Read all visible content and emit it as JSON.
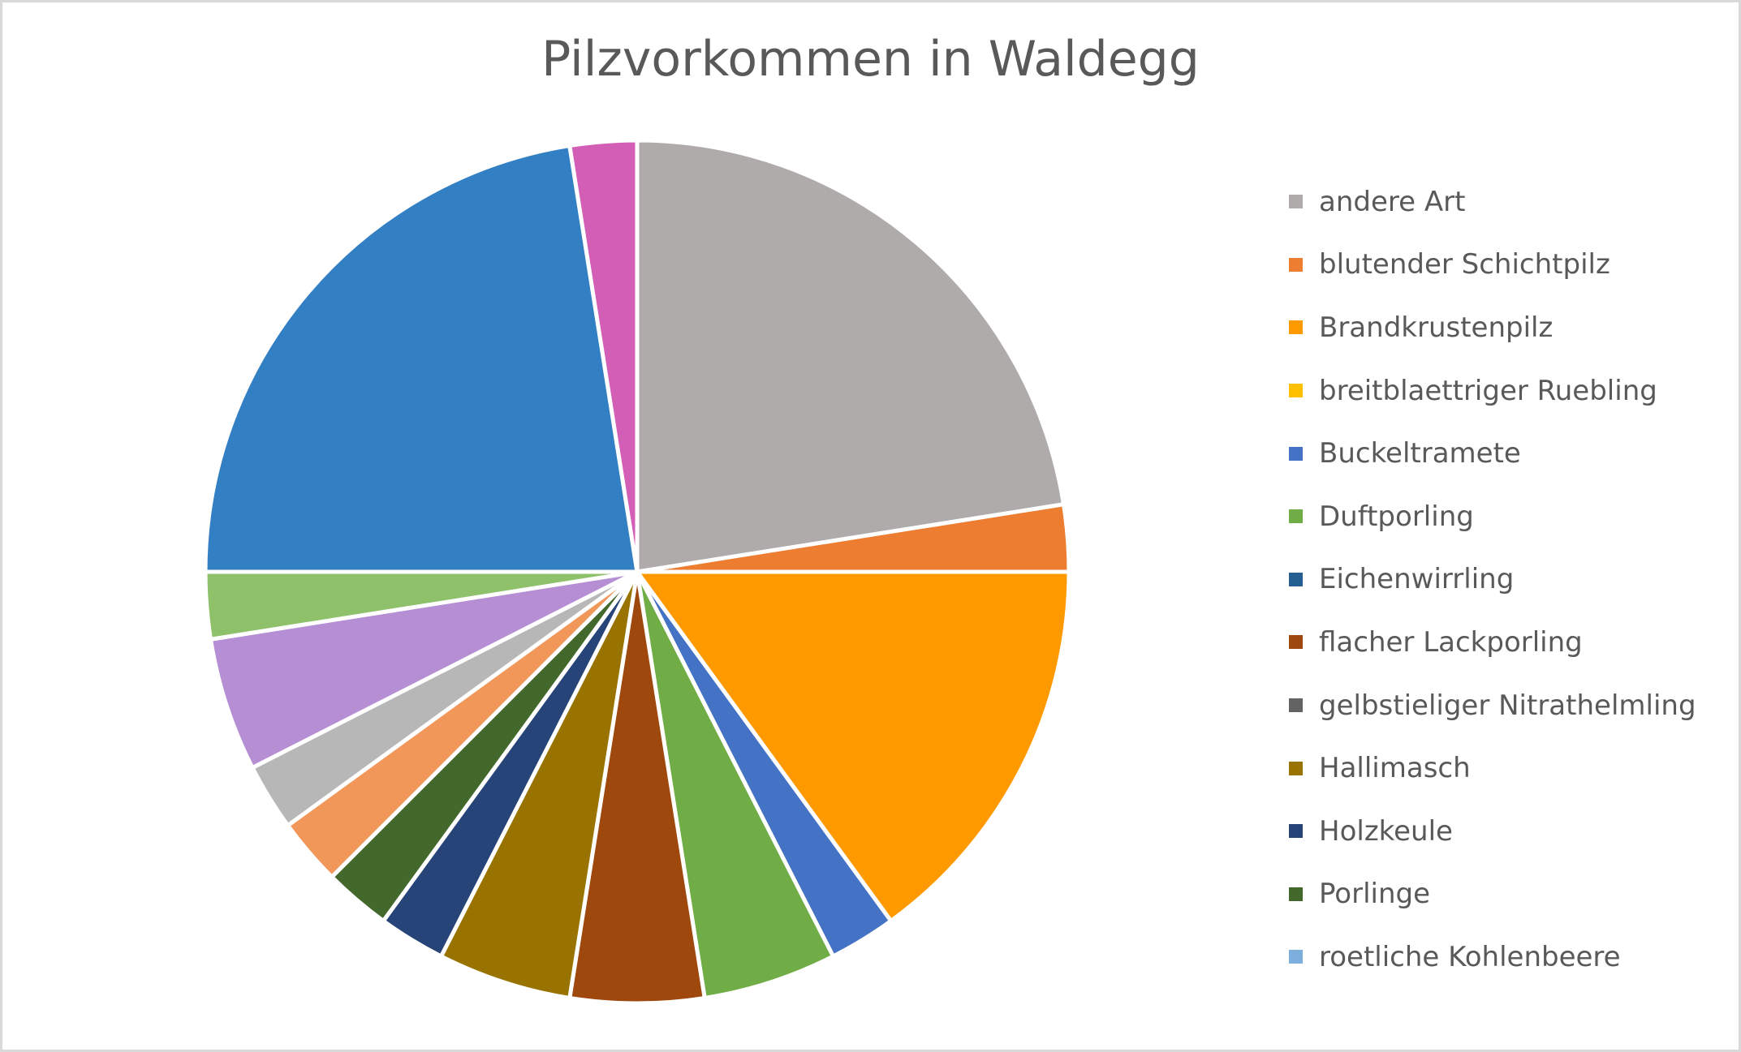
{
  "chart_data": {
    "type": "pie",
    "title": "Pilzvorkommen in Waldegg",
    "legend_position": "right",
    "slices": [
      {
        "label": "andere Art",
        "value": 9,
        "color": "#afabab"
      },
      {
        "label": "blutender Schichtpilz",
        "value": 1,
        "color": "#ed7d31"
      },
      {
        "label": "Brandkrustenpilz",
        "value": 6,
        "color": "#ff9900"
      },
      {
        "label": "breitblaettriger Ruebling",
        "value": 0,
        "color": "#ffc000"
      },
      {
        "label": "Buckeltramete",
        "value": 1,
        "color": "#4472c4"
      },
      {
        "label": "Duftporling",
        "value": 2,
        "color": "#70ad47"
      },
      {
        "label": "Eichenwirrling",
        "value": 0,
        "color": "#255e91"
      },
      {
        "label": "flacher Lackporling",
        "value": 2,
        "color": "#9e480e"
      },
      {
        "label": "gelbstieliger Nitrathelmling",
        "value": 0,
        "color": "#636363"
      },
      {
        "label": "Hallimasch",
        "value": 2,
        "color": "#997300"
      },
      {
        "label": "Holzkeule",
        "value": 1,
        "color": "#264478"
      },
      {
        "label": "Porlinge",
        "value": 1,
        "color": "#43682b"
      },
      {
        "label": "roetliche Kohlenbeere",
        "value": 0,
        "color": "#7cafdd"
      },
      {
        "label": "",
        "value": 1,
        "color": "#f1975a"
      },
      {
        "label": "",
        "value": 1,
        "color": "#b7b7b7"
      },
      {
        "label": "",
        "value": 2,
        "color": "#b58ed3"
      },
      {
        "label": "",
        "value": 1,
        "color": "#8fc16b"
      },
      {
        "label": "",
        "value": 9,
        "color": "#337fc3"
      },
      {
        "label": "",
        "value": 1,
        "color": "#d35eb5"
      }
    ],
    "legend": [
      {
        "label": "andere Art",
        "color": "#afabab"
      },
      {
        "label": "blutender Schichtpilz",
        "color": "#ed7d31"
      },
      {
        "label": "Brandkrustenpilz",
        "color": "#ff9900"
      },
      {
        "label": "breitblaettriger Ruebling",
        "color": "#ffc000"
      },
      {
        "label": "Buckeltramete",
        "color": "#4472c4"
      },
      {
        "label": "Duftporling",
        "color": "#70ad47"
      },
      {
        "label": "Eichenwirrling",
        "color": "#255e91"
      },
      {
        "label": "flacher Lackporling",
        "color": "#9e480e"
      },
      {
        "label": "gelbstieliger Nitrathelmling",
        "color": "#636363"
      },
      {
        "label": "Hallimasch",
        "color": "#997300"
      },
      {
        "label": "Holzkeule",
        "color": "#264478"
      },
      {
        "label": "Porlinge",
        "color": "#43682b"
      },
      {
        "label": "roetliche Kohlenbeere",
        "color": "#7cafdd"
      }
    ]
  }
}
